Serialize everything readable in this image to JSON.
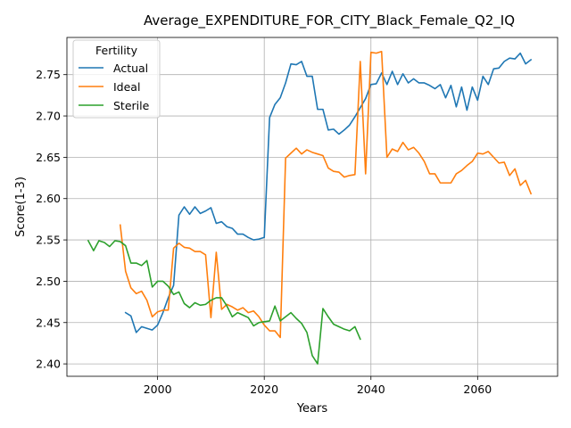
{
  "chart_data": {
    "type": "line",
    "title": "Average_EXPENDITURE_FOR_CITY_Black_Female_Q2_IQ",
    "xlabel": "Years",
    "ylabel": "Score(1-3)",
    "xlim": [
      1983,
      2075
    ],
    "ylim": [
      2.385,
      2.795
    ],
    "xticks": [
      2000,
      2020,
      2040,
      2060
    ],
    "yticks": [
      2.4,
      2.45,
      2.5,
      2.55,
      2.6,
      2.65,
      2.7,
      2.75
    ],
    "ytick_labels": [
      "2.40",
      "2.45",
      "2.50",
      "2.55",
      "2.60",
      "2.65",
      "2.70",
      "2.75"
    ],
    "grid": true,
    "legend": {
      "title": "Fertility",
      "placement": "upper-left"
    },
    "series": [
      {
        "name": "Actual",
        "color": "#1f77b4",
        "x": [
          1994,
          1995,
          1996,
          1997,
          1998,
          1999,
          2000,
          2001,
          2002,
          2003,
          2004,
          2005,
          2006,
          2007,
          2008,
          2009,
          2010,
          2011,
          2012,
          2013,
          2014,
          2015,
          2016,
          2017,
          2018,
          2019,
          2020,
          2021,
          2022,
          2023,
          2024,
          2025,
          2026,
          2027,
          2028,
          2029,
          2030,
          2031,
          2032,
          2033,
          2034,
          2035,
          2036,
          2037,
          2038,
          2039,
          2040,
          2041,
          2042,
          2043,
          2044,
          2045,
          2046,
          2047,
          2048,
          2049,
          2050,
          2051,
          2052,
          2053,
          2054,
          2055,
          2056,
          2057,
          2058,
          2059,
          2060,
          2061,
          2062,
          2063,
          2064,
          2065,
          2066,
          2067,
          2068,
          2069,
          2070
        ],
        "values": [
          2.462,
          2.458,
          2.438,
          2.445,
          2.443,
          2.441,
          2.447,
          2.462,
          2.48,
          2.495,
          2.58,
          2.59,
          2.581,
          2.59,
          2.582,
          2.585,
          2.589,
          2.57,
          2.572,
          2.566,
          2.564,
          2.557,
          2.557,
          2.553,
          2.55,
          2.551,
          2.553,
          2.698,
          2.714,
          2.722,
          2.74,
          2.763,
          2.762,
          2.766,
          2.748,
          2.748,
          2.708,
          2.708,
          2.683,
          2.684,
          2.678,
          2.683,
          2.689,
          2.699,
          2.71,
          2.721,
          2.738,
          2.739,
          2.752,
          2.738,
          2.754,
          2.738,
          2.751,
          2.74,
          2.745,
          2.74,
          2.74,
          2.737,
          2.733,
          2.738,
          2.722,
          2.737,
          2.711,
          2.735,
          2.707,
          2.735,
          2.719,
          2.748,
          2.738,
          2.757,
          2.758,
          2.766,
          2.77,
          2.769,
          2.776,
          2.763,
          2.768
        ]
      },
      {
        "name": "Ideal",
        "color": "#ff7f0e",
        "x": [
          1993,
          1994,
          1995,
          1996,
          1997,
          1998,
          1999,
          2000,
          2001,
          2002,
          2003,
          2004,
          2005,
          2006,
          2007,
          2008,
          2009,
          2010,
          2011,
          2012,
          2013,
          2014,
          2015,
          2016,
          2017,
          2018,
          2019,
          2020,
          2021,
          2022,
          2023,
          2024,
          2025,
          2026,
          2027,
          2028,
          2029,
          2030,
          2031,
          2032,
          2033,
          2034,
          2035,
          2036,
          2037,
          2038,
          2039,
          2040,
          2041,
          2042,
          2043,
          2044,
          2045,
          2046,
          2047,
          2048,
          2049,
          2050,
          2051,
          2052,
          2053,
          2054,
          2055,
          2056,
          2057,
          2058,
          2059,
          2060,
          2061,
          2062,
          2063,
          2064,
          2065,
          2066,
          2067,
          2068,
          2069,
          2070
        ],
        "values": [
          2.568,
          2.512,
          2.492,
          2.485,
          2.488,
          2.477,
          2.457,
          2.463,
          2.465,
          2.465,
          2.54,
          2.546,
          2.541,
          2.54,
          2.536,
          2.536,
          2.532,
          2.456,
          2.535,
          2.466,
          2.472,
          2.469,
          2.465,
          2.468,
          2.462,
          2.464,
          2.457,
          2.447,
          2.44,
          2.44,
          2.432,
          2.649,
          2.655,
          2.661,
          2.654,
          2.659,
          2.656,
          2.654,
          2.652,
          2.637,
          2.633,
          2.632,
          2.626,
          2.628,
          2.629,
          2.766,
          2.63,
          2.777,
          2.776,
          2.778,
          2.65,
          2.66,
          2.657,
          2.668,
          2.659,
          2.662,
          2.655,
          2.645,
          2.63,
          2.63,
          2.619,
          2.619,
          2.619,
          2.63,
          2.634,
          2.64,
          2.645,
          2.655,
          2.654,
          2.657,
          2.65,
          2.643,
          2.644,
          2.628,
          2.636,
          2.616,
          2.622,
          2.606
        ]
      },
      {
        "name": "Sterile",
        "color": "#2ca02c",
        "x": [
          1987,
          1988,
          1989,
          1990,
          1991,
          1992,
          1993,
          1994,
          1995,
          1996,
          1997,
          1998,
          1999,
          2000,
          2001,
          2002,
          2003,
          2004,
          2005,
          2006,
          2007,
          2008,
          2009,
          2010,
          2011,
          2012,
          2013,
          2014,
          2015,
          2016,
          2017,
          2018,
          2019,
          2020,
          2021,
          2022,
          2023,
          2024,
          2025,
          2026,
          2027,
          2028,
          2029,
          2030,
          2031,
          2032,
          2033,
          2034,
          2035,
          2036,
          2037,
          2038
        ],
        "values": [
          2.549,
          2.537,
          2.549,
          2.547,
          2.542,
          2.549,
          2.548,
          2.543,
          2.522,
          2.522,
          2.519,
          2.525,
          2.493,
          2.5,
          2.5,
          2.494,
          2.484,
          2.487,
          2.473,
          2.468,
          2.474,
          2.471,
          2.472,
          2.477,
          2.48,
          2.48,
          2.47,
          2.457,
          2.462,
          2.459,
          2.456,
          2.446,
          2.45,
          2.451,
          2.452,
          2.47,
          2.452,
          2.457,
          2.462,
          2.455,
          2.449,
          2.438,
          2.41,
          2.4,
          2.467,
          2.457,
          2.448,
          2.445,
          2.442,
          2.44,
          2.445,
          2.43
        ]
      }
    ]
  }
}
